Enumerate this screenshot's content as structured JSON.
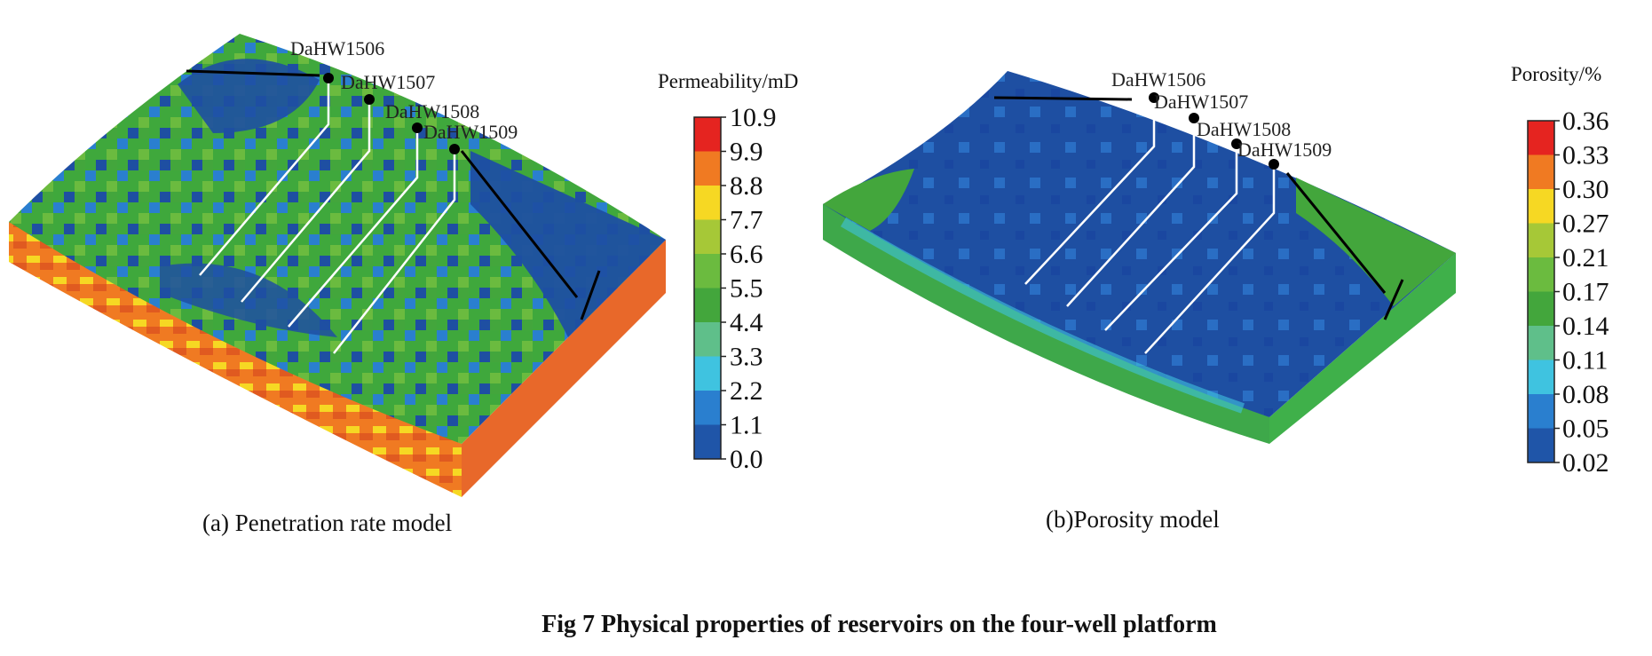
{
  "panels": [
    {
      "id": "a",
      "legend_title": "Permeability/mD",
      "ticks": [
        "10.9",
        "9.9",
        "8.8",
        "7.7",
        "6.6",
        "5.5",
        "4.4",
        "3.3",
        "2.2",
        "1.1",
        "0.0"
      ],
      "wells": [
        "DaHW1506",
        "DaHW1507",
        "DaHW1508",
        "DaHW1509"
      ],
      "caption": "(a) Penetration rate model"
    },
    {
      "id": "b",
      "legend_title": "Porosity/%",
      "ticks": [
        "0.36",
        "0.33",
        "0.30",
        "0.27",
        "0.21",
        "0.17",
        "0.14",
        "0.11",
        "0.08",
        "0.05",
        "0.02"
      ],
      "wells": [
        "DaHW1506",
        "DaHW1507",
        "DaHW1508",
        "DaHW1509"
      ],
      "caption": "(b)Porosity model"
    }
  ],
  "colors": {
    "scale": [
      "#e52420",
      "#f07a22",
      "#f6d823",
      "#a6c837",
      "#6bbb3f",
      "#43a63c",
      "#5fbf8a",
      "#3fc3e0",
      "#2a7fcf",
      "#1f55a8"
    ],
    "deep_blue": "#1e4fa2"
  },
  "figure_caption": "Fig 7 Physical properties of reservoirs on the four-well platform"
}
